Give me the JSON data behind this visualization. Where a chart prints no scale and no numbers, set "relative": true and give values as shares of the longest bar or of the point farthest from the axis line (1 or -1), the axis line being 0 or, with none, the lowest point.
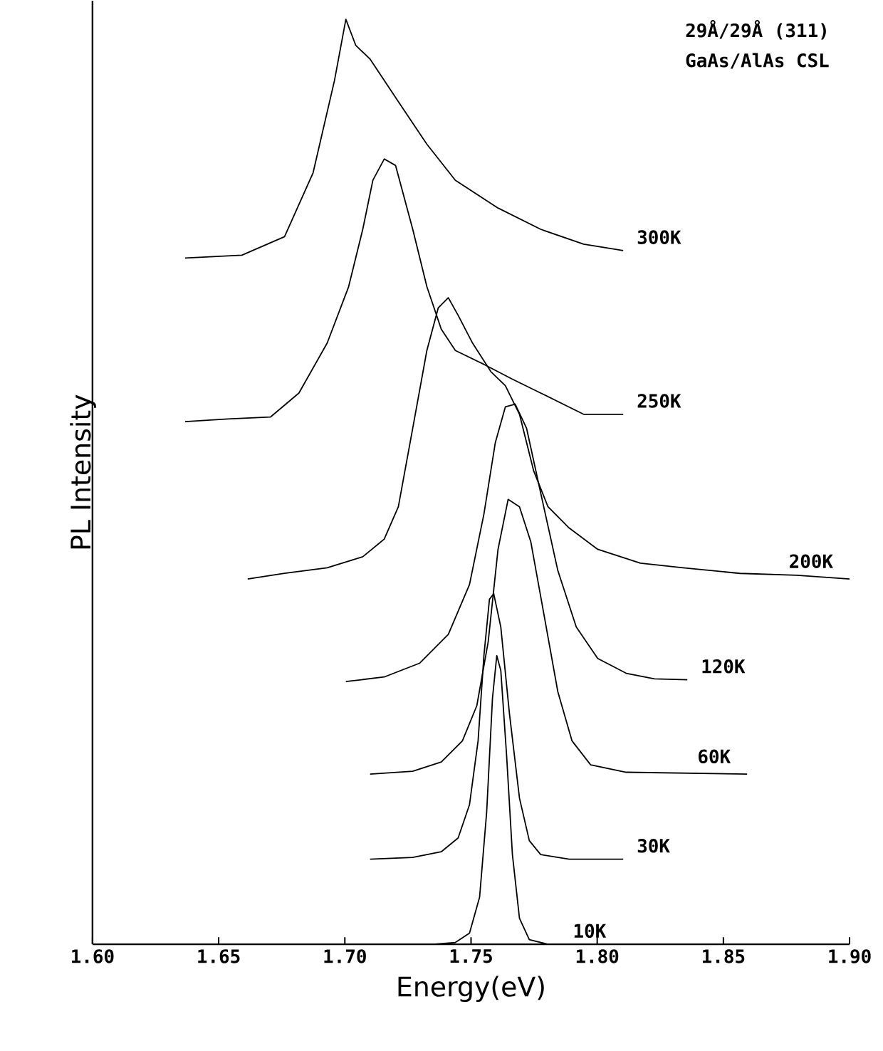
{
  "chart_data": {
    "type": "line",
    "relative": true,
    "xlabel": "Energy(eV)",
    "ylabel": "PL Intensity",
    "annotations": [
      "29Å/29Å (311)",
      "GaAs/AlAs CSL"
    ],
    "xlim": [
      1.6,
      1.9
    ],
    "xticks": [
      {
        "value": 1.6,
        "label": "1.60"
      },
      {
        "value": 1.65,
        "label": "1.65"
      },
      {
        "value": 1.7,
        "label": "1.70"
      },
      {
        "value": 1.75,
        "label": "1.75"
      },
      {
        "value": 1.8,
        "label": "1.80"
      },
      {
        "value": 1.85,
        "label": "1.85"
      },
      {
        "value": 1.9,
        "label": "1.90"
      }
    ],
    "marker": "none",
    "line_style": "solid",
    "series": [
      {
        "name": "300K",
        "color": "#000000",
        "x": [
          1.6367,
          1.6592,
          1.6761,
          1.6874,
          1.6959,
          1.7004,
          1.7043,
          1.71,
          1.7212,
          1.7325,
          1.7438,
          1.7607,
          1.7776,
          1.7946,
          1.8103
        ],
        "values": [
          0.742,
          0.745,
          0.765,
          0.834,
          0.934,
          1.0,
          0.972,
          0.957,
          0.911,
          0.865,
          0.826,
          0.796,
          0.773,
          0.757,
          0.75
        ]
      },
      {
        "name": "250K",
        "color": "#000000",
        "x": [
          1.6367,
          1.6536,
          1.6705,
          1.6818,
          1.693,
          1.7015,
          1.7071,
          1.7111,
          1.7156,
          1.7201,
          1.7269,
          1.7325,
          1.7382,
          1.7438,
          1.7551,
          1.7664,
          1.7776,
          1.7946,
          1.8103
        ],
        "values": [
          0.565,
          0.568,
          0.57,
          0.596,
          0.65,
          0.711,
          0.773,
          0.826,
          0.849,
          0.842,
          0.773,
          0.711,
          0.665,
          0.642,
          0.627,
          0.611,
          0.596,
          0.573,
          0.573
        ]
      },
      {
        "name": "200K",
        "color": "#000000",
        "x": [
          1.6615,
          1.6761,
          1.693,
          1.7071,
          1.7156,
          1.7212,
          1.7269,
          1.7325,
          1.737,
          1.741,
          1.7449,
          1.7506,
          1.7579,
          1.7636,
          1.7692,
          1.7748,
          1.7805,
          1.7889,
          1.8002,
          1.8171,
          1.834,
          1.8566,
          1.8791,
          1.9
        ],
        "values": [
          0.395,
          0.401,
          0.407,
          0.419,
          0.438,
          0.473,
          0.558,
          0.642,
          0.688,
          0.699,
          0.68,
          0.65,
          0.619,
          0.604,
          0.573,
          0.512,
          0.473,
          0.45,
          0.427,
          0.412,
          0.407,
          0.401,
          0.399,
          0.395
        ]
      },
      {
        "name": "120K",
        "color": "#000000",
        "x": [
          1.7004,
          1.7156,
          1.7297,
          1.741,
          1.7494,
          1.7551,
          1.7596,
          1.7636,
          1.7675,
          1.772,
          1.7776,
          1.7844,
          1.7917,
          1.8002,
          1.8115,
          1.8227,
          1.8357
        ],
        "values": [
          0.284,
          0.289,
          0.304,
          0.335,
          0.389,
          0.465,
          0.542,
          0.581,
          0.584,
          0.558,
          0.488,
          0.404,
          0.343,
          0.309,
          0.293,
          0.287,
          0.286
        ]
      },
      {
        "name": "60K",
        "color": "#000000",
        "x": [
          1.71,
          1.7269,
          1.7382,
          1.7466,
          1.7523,
          1.7568,
          1.7607,
          1.7647,
          1.7692,
          1.7737,
          1.7788,
          1.7844,
          1.79,
          1.7974,
          1.8115,
          1.8594
        ],
        "values": [
          0.184,
          0.187,
          0.197,
          0.22,
          0.258,
          0.327,
          0.427,
          0.481,
          0.473,
          0.435,
          0.358,
          0.273,
          0.22,
          0.194,
          0.186,
          0.184
        ]
      },
      {
        "name": "30K",
        "color": "#000000",
        "x": [
          1.71,
          1.7269,
          1.7382,
          1.7449,
          1.7494,
          1.7528,
          1.7551,
          1.7573,
          1.759,
          1.7618,
          1.7652,
          1.7692,
          1.7731,
          1.7776,
          1.7889,
          1.8103
        ],
        "values": [
          0.092,
          0.094,
          0.1,
          0.115,
          0.151,
          0.22,
          0.312,
          0.373,
          0.379,
          0.343,
          0.25,
          0.158,
          0.112,
          0.097,
          0.092,
          0.092
        ]
      },
      {
        "name": "10K",
        "color": "#000000",
        "x": [
          1.7348,
          1.7438,
          1.7494,
          1.7534,
          1.7562,
          1.7585,
          1.7602,
          1.7618,
          1.7641,
          1.7664,
          1.7692,
          1.7731,
          1.7805,
          1.785
        ],
        "values": [
          0.0,
          0.002,
          0.012,
          0.051,
          0.143,
          0.266,
          0.312,
          0.296,
          0.204,
          0.097,
          0.028,
          0.005,
          0.0,
          0.0
        ]
      }
    ]
  }
}
